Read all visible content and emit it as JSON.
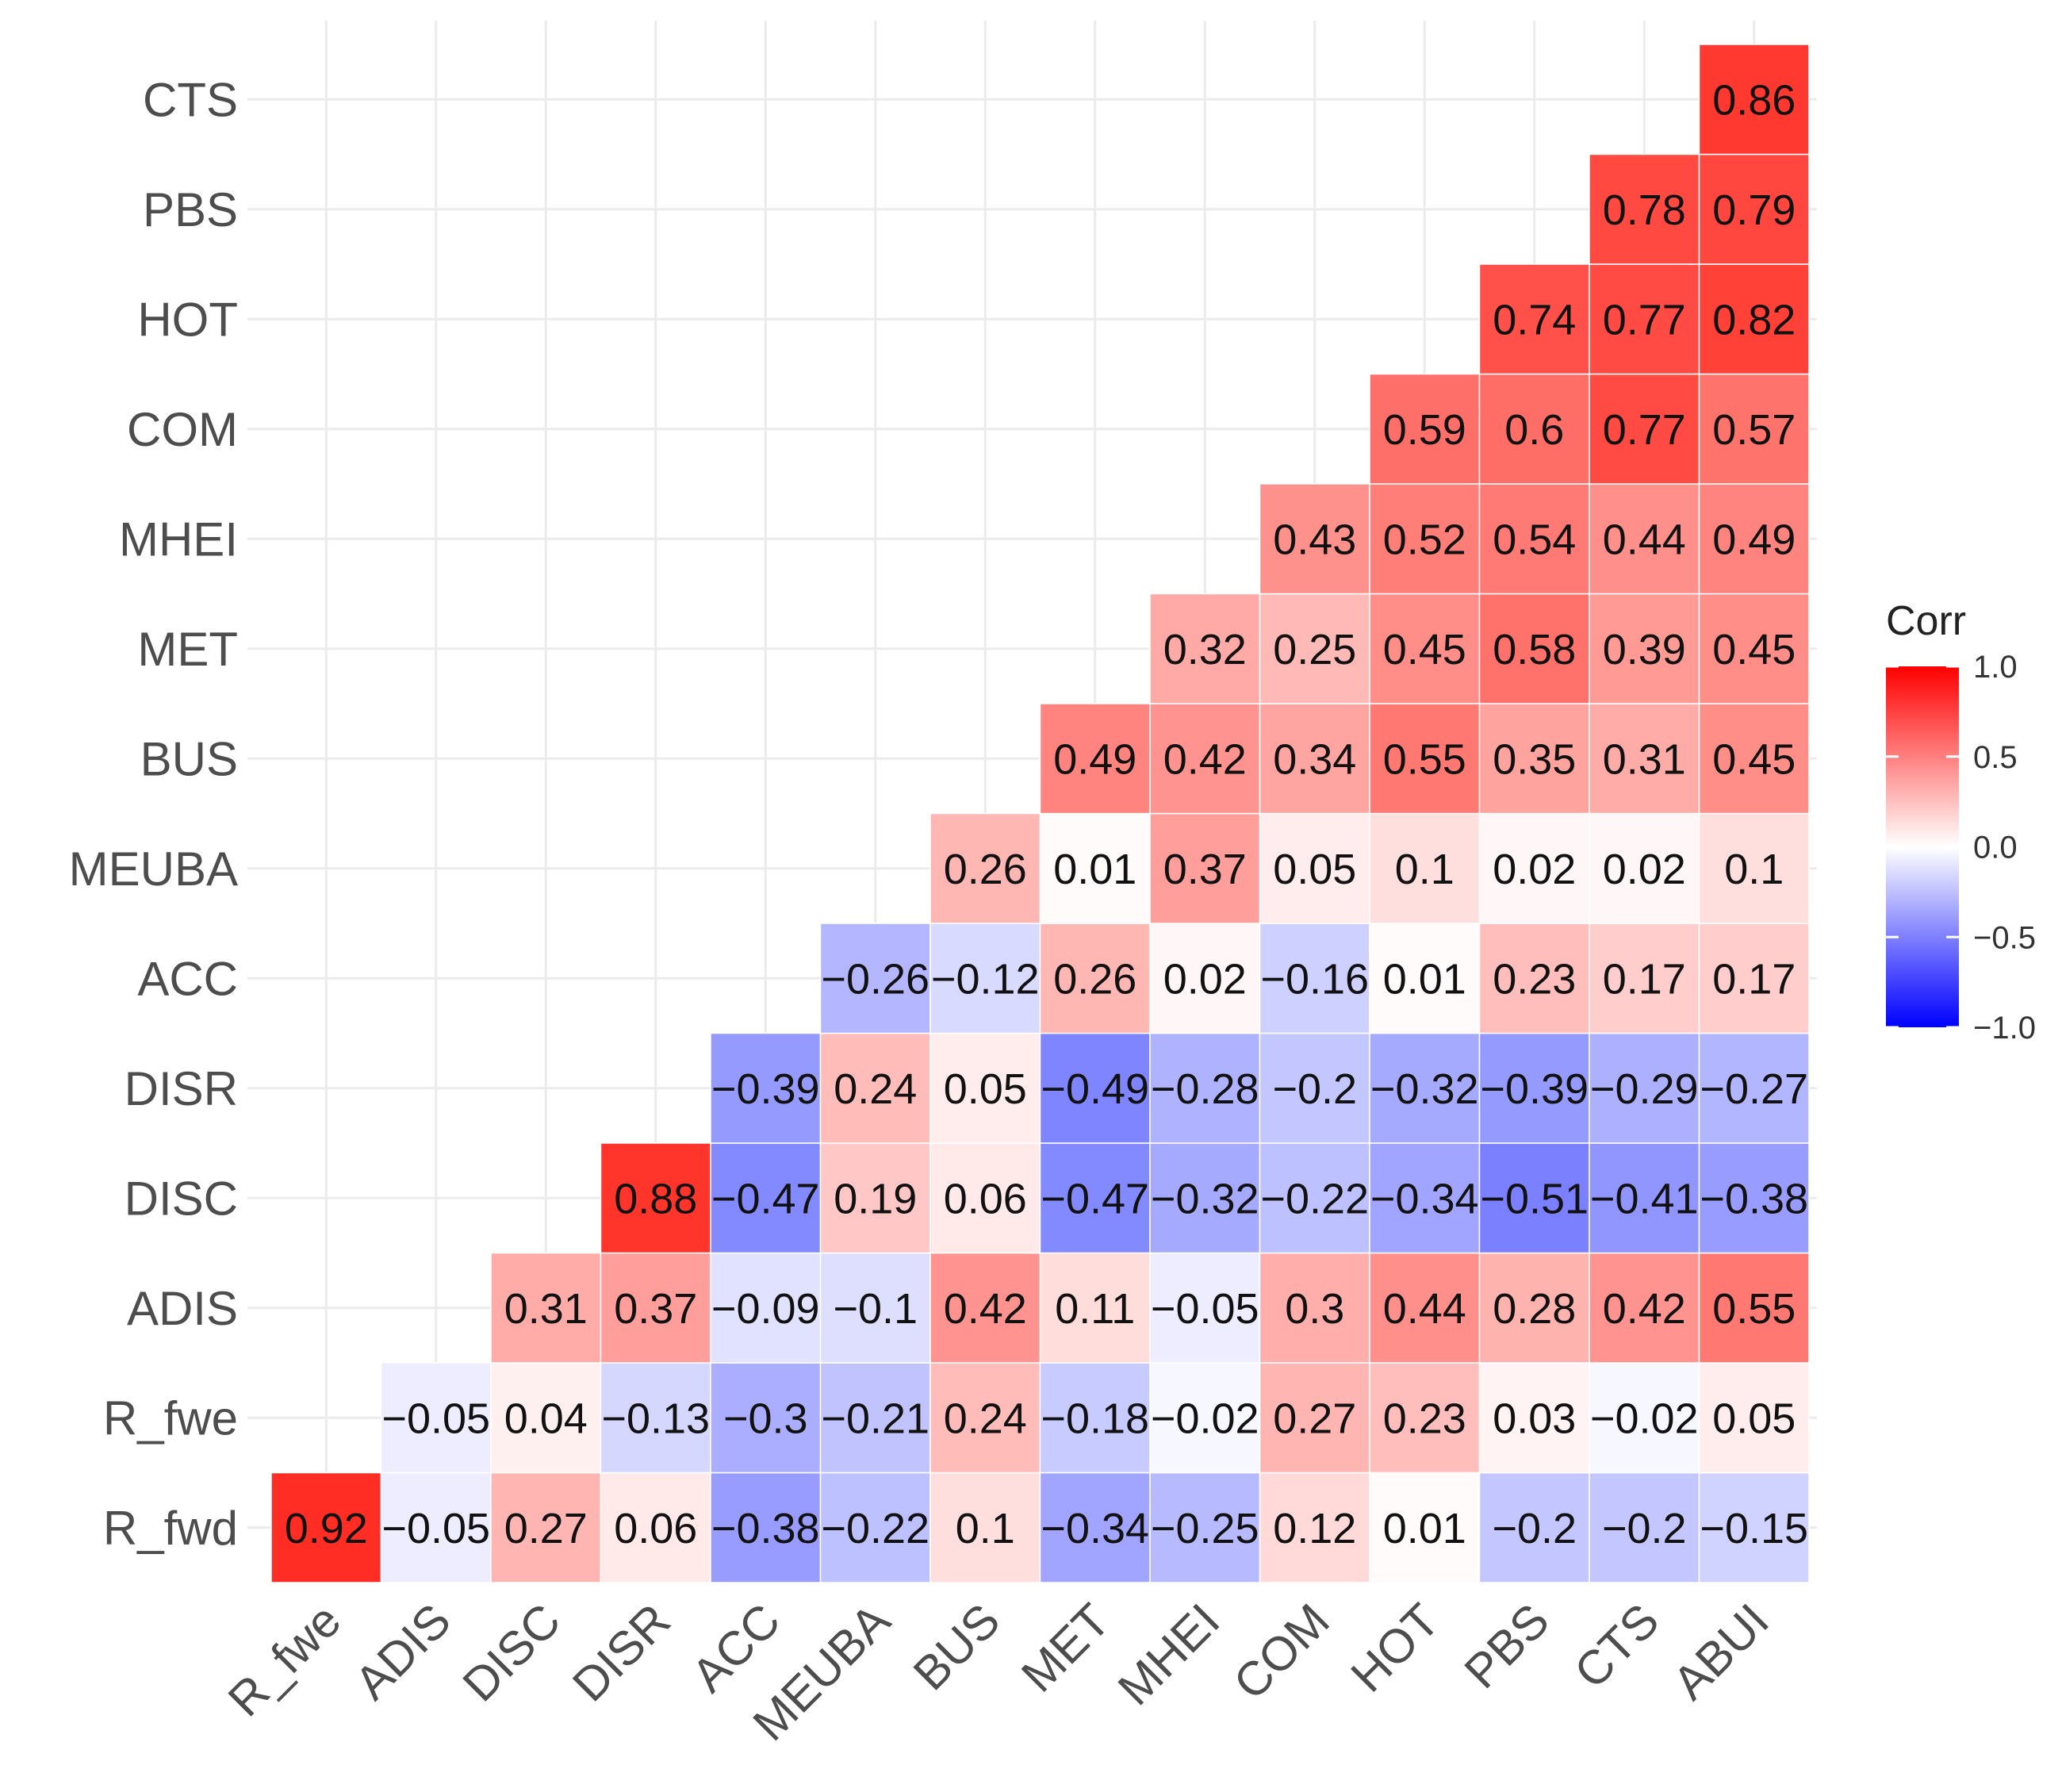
{
  "chart_data": {
    "type": "heatmap",
    "title": "",
    "xlabel": "",
    "ylabel": "",
    "x_labels": [
      "R_fwe",
      "ADIS",
      "DISC",
      "DISR",
      "ACC",
      "MEUBA",
      "BUS",
      "MET",
      "MHEI",
      "COM",
      "HOT",
      "PBS",
      "CTS",
      "ABUI"
    ],
    "y_labels_bottom_to_top": [
      "R_fwd",
      "R_fwe",
      "ADIS",
      "DISC",
      "DISR",
      "ACC",
      "MEUBA",
      "BUS",
      "MET",
      "MHEI",
      "COM",
      "HOT",
      "PBS",
      "CTS"
    ],
    "rows": [
      {
        "label": "R_fwd",
        "values": [
          0.92,
          -0.05,
          0.27,
          0.06,
          -0.38,
          -0.22,
          0.1,
          -0.34,
          -0.25,
          0.12,
          0.01,
          -0.2,
          -0.2,
          -0.15
        ]
      },
      {
        "label": "R_fwe",
        "values": [
          null,
          -0.05,
          0.04,
          -0.13,
          -0.3,
          -0.21,
          0.24,
          -0.18,
          -0.02,
          0.27,
          0.23,
          0.03,
          -0.02,
          0.05
        ]
      },
      {
        "label": "ADIS",
        "values": [
          null,
          null,
          0.31,
          0.37,
          -0.09,
          -0.1,
          0.42,
          0.11,
          -0.05,
          0.3,
          0.44,
          0.28,
          0.42,
          0.55
        ]
      },
      {
        "label": "DISC",
        "values": [
          null,
          null,
          null,
          0.88,
          -0.47,
          0.19,
          0.06,
          -0.47,
          -0.32,
          -0.22,
          -0.34,
          -0.51,
          -0.41,
          -0.38
        ]
      },
      {
        "label": "DISR",
        "values": [
          null,
          null,
          null,
          null,
          -0.39,
          0.24,
          0.05,
          -0.49,
          -0.28,
          -0.2,
          -0.32,
          -0.39,
          -0.29,
          -0.27
        ]
      },
      {
        "label": "ACC",
        "values": [
          null,
          null,
          null,
          null,
          null,
          -0.26,
          -0.12,
          0.26,
          0.02,
          -0.16,
          0.01,
          0.23,
          0.17,
          0.17
        ]
      },
      {
        "label": "MEUBA",
        "values": [
          null,
          null,
          null,
          null,
          null,
          null,
          0.26,
          0.01,
          0.37,
          0.05,
          0.1,
          0.02,
          0.02,
          0.1
        ]
      },
      {
        "label": "BUS",
        "values": [
          null,
          null,
          null,
          null,
          null,
          null,
          null,
          0.49,
          0.42,
          0.34,
          0.55,
          0.35,
          0.31,
          0.45
        ]
      },
      {
        "label": "MET",
        "values": [
          null,
          null,
          null,
          null,
          null,
          null,
          null,
          null,
          0.32,
          0.25,
          0.45,
          0.58,
          0.39,
          0.45
        ]
      },
      {
        "label": "MHEI",
        "values": [
          null,
          null,
          null,
          null,
          null,
          null,
          null,
          null,
          null,
          0.43,
          0.52,
          0.54,
          0.44,
          0.49
        ]
      },
      {
        "label": "COM",
        "values": [
          null,
          null,
          null,
          null,
          null,
          null,
          null,
          null,
          null,
          null,
          0.59,
          0.6,
          0.77,
          0.57
        ]
      },
      {
        "label": "HOT",
        "values": [
          null,
          null,
          null,
          null,
          null,
          null,
          null,
          null,
          null,
          null,
          null,
          0.74,
          0.77,
          0.82
        ]
      },
      {
        "label": "PBS",
        "values": [
          null,
          null,
          null,
          null,
          null,
          null,
          null,
          null,
          null,
          null,
          null,
          null,
          0.78,
          0.79
        ]
      },
      {
        "label": "CTS",
        "values": [
          null,
          null,
          null,
          null,
          null,
          null,
          null,
          null,
          null,
          null,
          null,
          null,
          null,
          0.86
        ]
      }
    ],
    "legend": {
      "title": "Corr",
      "position": "right",
      "range": [
        -1.0,
        1.0
      ],
      "ticks": [
        "1.0",
        "0.5",
        "0.0",
        "−0.5",
        "−1.0"
      ],
      "low_color": "#0000ff",
      "mid_color": "#ffffff",
      "high_color": "#ff0000"
    },
    "grid": true
  }
}
